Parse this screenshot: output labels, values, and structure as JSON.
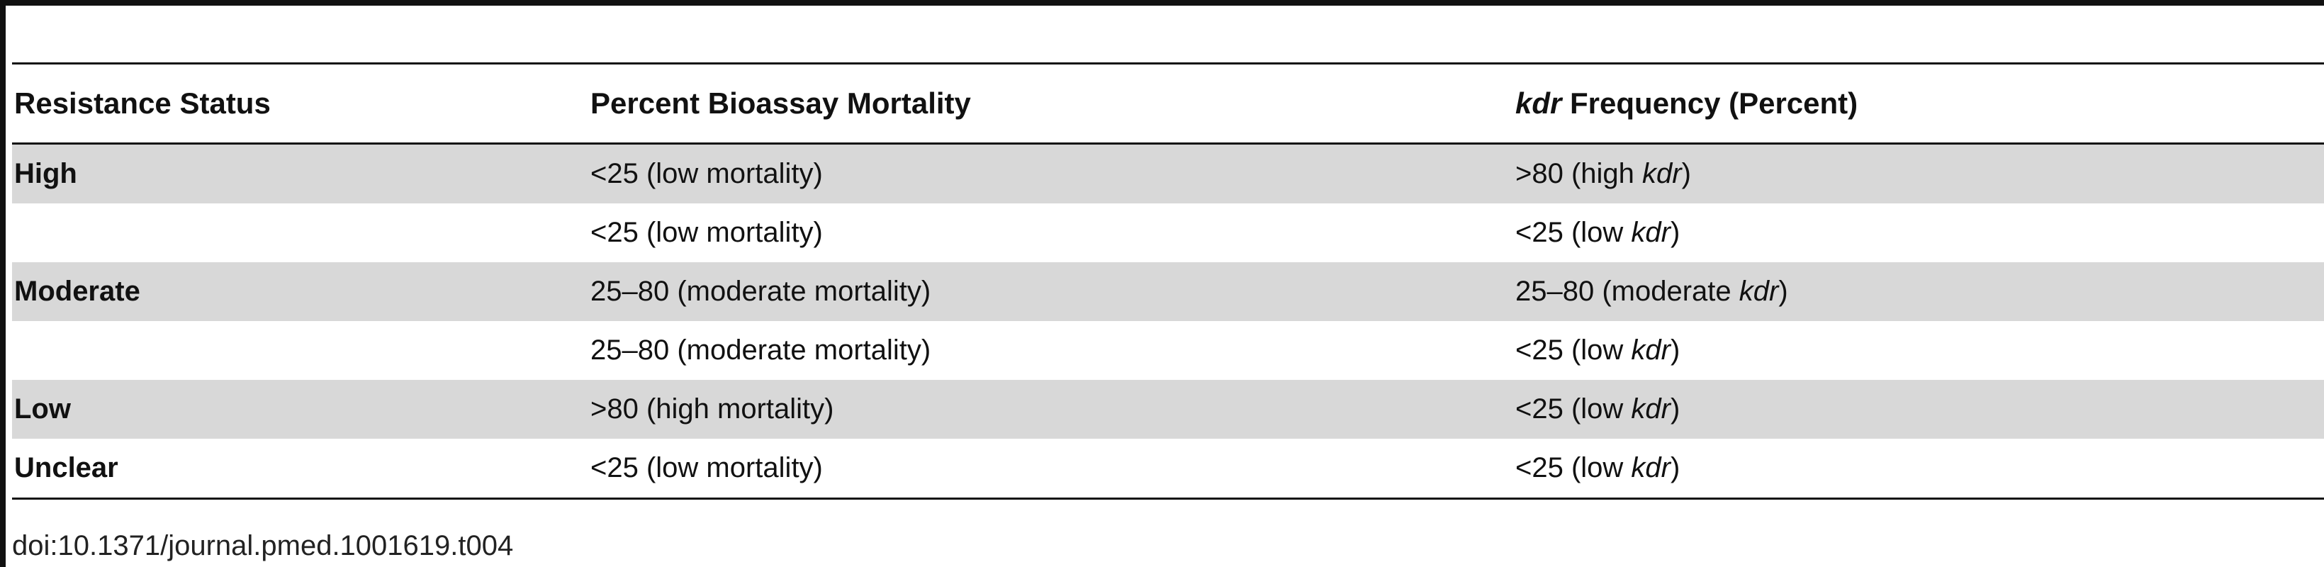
{
  "table": {
    "headers": {
      "status": "Resistance Status",
      "mortality": "Percent Bioassay Mortality",
      "kdr_italic": "kdr",
      "kdr_rest": " Frequency (Percent)"
    },
    "rows": [
      {
        "status": "High",
        "mortality": "<25 (low mortality)",
        "kdr_pre": ">80 (high ",
        "kdr_ital": "kdr",
        "kdr_post": ")",
        "shaded": true
      },
      {
        "status": "",
        "mortality": "<25 (low mortality)",
        "kdr_pre": "<25 (low ",
        "kdr_ital": "kdr",
        "kdr_post": ")",
        "shaded": false
      },
      {
        "status": "Moderate",
        "mortality": "25–80 (moderate mortality)",
        "kdr_pre": "25–80 (moderate ",
        "kdr_ital": "kdr",
        "kdr_post": ")",
        "shaded": true
      },
      {
        "status": "",
        "mortality": "25–80 (moderate mortality)",
        "kdr_pre": "<25 (low ",
        "kdr_ital": "kdr",
        "kdr_post": ")",
        "shaded": false
      },
      {
        "status": "Low",
        "mortality": ">80 (high mortality)",
        "kdr_pre": "<25 (low ",
        "kdr_ital": "kdr",
        "kdr_post": ")",
        "shaded": true
      },
      {
        "status": "Unclear",
        "mortality": "<25 (low mortality)",
        "kdr_pre": "<25 (low ",
        "kdr_ital": "kdr",
        "kdr_post": ")",
        "shaded": false
      }
    ]
  },
  "footer": {
    "doi": "doi:10.1371/journal.pmed.1001619.t004"
  },
  "colors": {
    "shaded_row": "#d8d8d8",
    "rule": "#111111"
  }
}
